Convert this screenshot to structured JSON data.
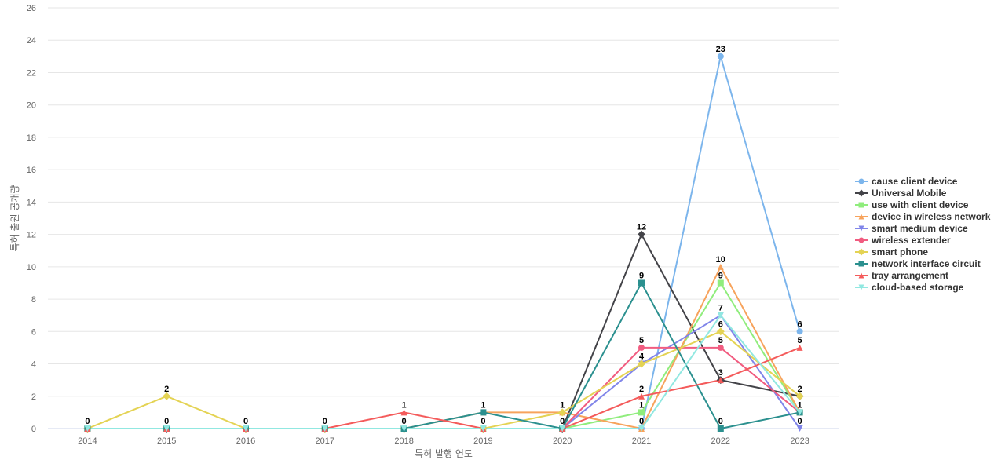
{
  "chart_data": {
    "type": "line",
    "title": "",
    "xlabel": "특허 발행 연도",
    "ylabel": "특허 출원 공개량",
    "categories": [
      "2014",
      "2015",
      "2016",
      "2017",
      "2018",
      "2019",
      "2020",
      "2021",
      "2022",
      "2023"
    ],
    "ylim": [
      0,
      26
    ],
    "yticks": [
      0,
      2,
      4,
      6,
      8,
      10,
      12,
      14,
      16,
      18,
      20,
      22,
      24,
      26
    ],
    "grid": true,
    "legend_position": "right",
    "series": [
      {
        "name": "cause client device",
        "color": "#7cb5ec",
        "marker": "circle",
        "values": [
          0,
          0,
          0,
          0,
          0,
          0,
          0,
          0,
          23,
          6
        ]
      },
      {
        "name": "Universal Mobile",
        "color": "#434348",
        "marker": "diamond",
        "values": [
          0,
          0,
          0,
          0,
          0,
          0,
          0,
          12,
          3,
          2
        ]
      },
      {
        "name": "use with client device",
        "color": "#90ed7d",
        "marker": "square",
        "values": [
          0,
          0,
          0,
          0,
          0,
          0,
          0,
          1,
          9,
          1
        ]
      },
      {
        "name": "device in wireless network",
        "color": "#f7a35c",
        "marker": "triangle",
        "values": [
          0,
          0,
          0,
          0,
          0,
          1,
          1,
          0,
          10,
          1
        ]
      },
      {
        "name": "smart medium device",
        "color": "#8085e9",
        "marker": "triangle-down",
        "values": [
          0,
          0,
          0,
          0,
          0,
          0,
          0,
          4,
          7,
          0
        ]
      },
      {
        "name": "wireless extender",
        "color": "#f15c80",
        "marker": "circle",
        "values": [
          0,
          0,
          0,
          0,
          0,
          0,
          0,
          5,
          5,
          1
        ]
      },
      {
        "name": "smart phone",
        "color": "#e4d354",
        "marker": "diamond",
        "values": [
          0,
          2,
          0,
          0,
          0,
          0,
          1,
          4,
          6,
          2
        ]
      },
      {
        "name": "network interface circuit",
        "color": "#2b908f",
        "marker": "square",
        "values": [
          0,
          0,
          0,
          0,
          0,
          1,
          0,
          9,
          0,
          1
        ]
      },
      {
        "name": "tray arrangement",
        "color": "#f45b5b",
        "marker": "triangle",
        "values": [
          0,
          0,
          0,
          0,
          1,
          0,
          0,
          2,
          3,
          5
        ]
      },
      {
        "name": "cloud-based storage",
        "color": "#91e8e1",
        "marker": "triangle-down",
        "values": [
          0,
          0,
          0,
          0,
          0,
          0,
          0,
          0,
          7,
          1
        ]
      }
    ],
    "data_labels": [
      {
        "x": "2014",
        "text": "0"
      },
      {
        "x": "2015",
        "text": "2"
      },
      {
        "x": "2015",
        "text": "0"
      },
      {
        "x": "2016",
        "text": "0"
      },
      {
        "x": "2017",
        "text": "0"
      },
      {
        "x": "2018",
        "text": "1"
      },
      {
        "x": "2018",
        "text": "0"
      },
      {
        "x": "2019",
        "text": "1"
      },
      {
        "x": "2019",
        "text": "0"
      },
      {
        "x": "2020",
        "text": "1"
      },
      {
        "x": "2020",
        "text": "0"
      },
      {
        "x": "2021",
        "text": "12"
      },
      {
        "x": "2021",
        "text": "9"
      },
      {
        "x": "2021",
        "text": "5"
      },
      {
        "x": "2021",
        "text": "4"
      },
      {
        "x": "2021",
        "text": "2"
      },
      {
        "x": "2021",
        "text": "1"
      },
      {
        "x": "2021",
        "text": "0"
      },
      {
        "x": "2022",
        "text": "23"
      },
      {
        "x": "2022",
        "text": "10"
      },
      {
        "x": "2022",
        "text": "9"
      },
      {
        "x": "2022",
        "text": "7"
      },
      {
        "x": "2022",
        "text": "6"
      },
      {
        "x": "2022",
        "text": "5"
      },
      {
        "x": "2022",
        "text": "3"
      },
      {
        "x": "2022",
        "text": "0"
      },
      {
        "x": "2023",
        "text": "6"
      },
      {
        "x": "2023",
        "text": "5"
      },
      {
        "x": "2023",
        "text": "2"
      },
      {
        "x": "2023",
        "text": "1"
      },
      {
        "x": "2023",
        "text": "0"
      }
    ]
  }
}
